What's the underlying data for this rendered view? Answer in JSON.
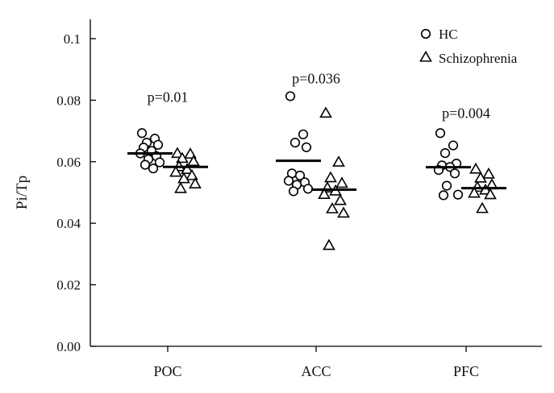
{
  "chart_data": {
    "type": "scatter",
    "title": "",
    "xlabel": "",
    "ylabel": "Pi/Tp",
    "ylim": [
      0,
      0.1
    ],
    "yticks": [
      0.1,
      0.08,
      0.06,
      0.04,
      0.02,
      0.0
    ],
    "ytick_labels": [
      "0.1",
      "0.08",
      "0.06",
      "0.04",
      "0.02",
      "0.00"
    ],
    "categories": [
      "POC",
      "ACC",
      "PFC"
    ],
    "legend_position": "top-right",
    "series": [
      {
        "name": "HC",
        "marker": "circle",
        "groups": [
          [
            0.0693,
            0.0675,
            0.0662,
            0.0655,
            0.0646,
            0.0635,
            0.0627,
            0.0618,
            0.0608,
            0.0598,
            0.059,
            0.0578
          ],
          [
            0.0813,
            0.0689,
            0.0662,
            0.0647,
            0.0562,
            0.0555,
            0.0538,
            0.0533,
            0.0525,
            0.0512,
            0.0504
          ],
          [
            0.0693,
            0.0653,
            0.0628,
            0.0594,
            0.0588,
            0.0583,
            0.0573,
            0.0562,
            0.0522,
            0.0493,
            0.0491
          ]
        ],
        "means": [
          0.0627,
          0.0603,
          0.0582
        ]
      },
      {
        "name": "Schizophrenia",
        "marker": "triangle",
        "groups": [
          [
            0.0627,
            0.0625,
            0.0611,
            0.0601,
            0.0584,
            0.0575,
            0.0566,
            0.0555,
            0.0545,
            0.0528,
            0.0513
          ],
          [
            0.0758,
            0.0599,
            0.0548,
            0.053,
            0.0515,
            0.0505,
            0.0494,
            0.0474,
            0.0447,
            0.0433,
            0.0328
          ],
          [
            0.0576,
            0.056,
            0.0547,
            0.0525,
            0.0517,
            0.0508,
            0.0498,
            0.0493,
            0.0448
          ]
        ],
        "means": [
          0.0583,
          0.0509,
          0.0514
        ]
      }
    ],
    "annotations": [
      {
        "category": "POC",
        "text": "p=0.01",
        "y": 0.0795
      },
      {
        "category": "ACC",
        "text": "p=0.036",
        "y": 0.0855
      },
      {
        "category": "PFC",
        "text": "p=0.004",
        "y": 0.0742
      }
    ]
  }
}
